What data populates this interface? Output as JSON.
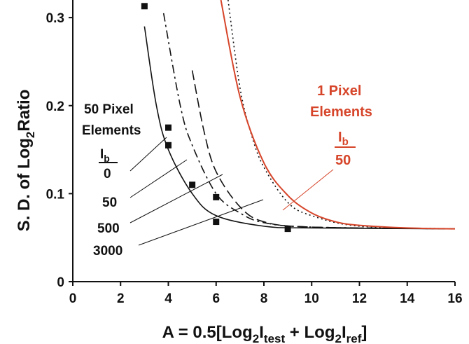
{
  "chart_data": {
    "type": "line",
    "xlabel": {
      "main": "A = 0.5[Log",
      "sub1": "2",
      "mid1": "I",
      "sub1b": "test",
      "mid2": " + Log",
      "sub2": "2",
      "mid3": "I",
      "sub2b": "ref",
      "end": "]"
    },
    "ylabel": {
      "main": "S. D. of Log",
      "sub": "2",
      "end": "Ratio"
    },
    "xlim": [
      0,
      16
    ],
    "ylim": [
      0,
      0.32
    ],
    "x_ticks": [
      "0",
      "2",
      "4",
      "6",
      "8",
      "10",
      "12",
      "14",
      "16"
    ],
    "y_ticks": [
      "0",
      "0.1",
      "0.2",
      "0.3"
    ],
    "x_tick_values": [
      0,
      2,
      4,
      6,
      8,
      10,
      12,
      14,
      16
    ],
    "y_tick_values": [
      0,
      0.1,
      0.2,
      0.3
    ],
    "series": [
      {
        "style": "solid",
        "color": "#111111",
        "asymptote": 0.06,
        "points": [
          [
            3.0,
            0.29
          ],
          [
            3.5,
            0.2
          ],
          [
            4.0,
            0.15
          ],
          [
            5.0,
            0.1
          ],
          [
            6.0,
            0.075
          ],
          [
            8.0,
            0.063
          ],
          [
            10.0,
            0.061
          ],
          [
            16.0,
            0.06
          ]
        ]
      },
      {
        "style": "dashed",
        "color": "#111111",
        "asymptote": 0.06,
        "points": [
          [
            5.0,
            0.24
          ],
          [
            5.5,
            0.17
          ],
          [
            6.0,
            0.125
          ],
          [
            7.0,
            0.085
          ],
          [
            8.0,
            0.068
          ],
          [
            10.0,
            0.062
          ],
          [
            16.0,
            0.06
          ]
        ]
      },
      {
        "style": "dashdot",
        "color": "#111111",
        "asymptote": 0.06,
        "points": [
          [
            3.8,
            0.305
          ],
          [
            4.5,
            0.2
          ],
          [
            5.0,
            0.155
          ],
          [
            6.0,
            0.1
          ],
          [
            7.0,
            0.078
          ],
          [
            8.0,
            0.067
          ],
          [
            10.0,
            0.062
          ],
          [
            16.0,
            0.06
          ]
        ]
      },
      {
        "style": "dotted",
        "color": "#111111",
        "asymptote": 0.06,
        "points": [
          [
            6.5,
            0.32
          ],
          [
            7.0,
            0.22
          ],
          [
            7.5,
            0.165
          ],
          [
            8.0,
            0.13
          ],
          [
            9.0,
            0.09
          ],
          [
            10.0,
            0.075
          ],
          [
            12.0,
            0.063
          ],
          [
            16.0,
            0.06
          ]
        ]
      },
      {
        "style": "solid",
        "color": "#d6452a",
        "asymptote": 0.06,
        "points": [
          [
            6.2,
            0.32
          ],
          [
            7.0,
            0.21
          ],
          [
            8.0,
            0.135
          ],
          [
            9.0,
            0.098
          ],
          [
            10.0,
            0.078
          ],
          [
            11.0,
            0.068
          ],
          [
            12.0,
            0.064
          ],
          [
            14.0,
            0.061
          ],
          [
            16.0,
            0.06
          ]
        ]
      }
    ],
    "markers": [
      [
        3.0,
        0.313
      ],
      [
        4.0,
        0.175
      ],
      [
        4.0,
        0.155
      ],
      [
        5.0,
        0.11
      ],
      [
        6.0,
        0.096
      ],
      [
        6.0,
        0.068
      ],
      [
        9.0,
        0.06
      ]
    ],
    "annotations": {
      "black_heading_1": "50 Pixel",
      "black_heading_2": "Elements",
      "ib_label": "I",
      "ib_sub": "b",
      "zero": "0",
      "v50": "50",
      "v500": "500",
      "v3000": "3000",
      "red_heading_1": "1 Pixel",
      "red_heading_2": "Elements",
      "red_ib_label": "I",
      "red_ib_sub": "b",
      "red_50": "50"
    }
  }
}
